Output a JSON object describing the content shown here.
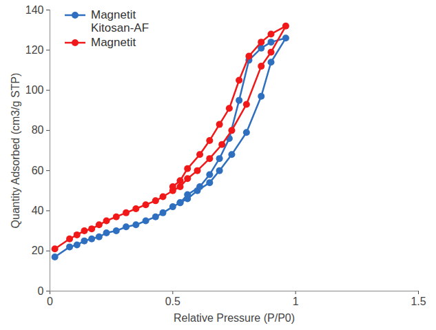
{
  "chart_data": {
    "type": "line",
    "x_label": "Relative Pressure (P/P0)",
    "y_label": "Quantity Adsorbed (cm3/g STP)",
    "xlim": [
      0,
      1.5
    ],
    "xticks": [
      0,
      0.5,
      1,
      1.5
    ],
    "ylim": [
      0,
      140
    ],
    "yticks": [
      0,
      20,
      40,
      60,
      80,
      100,
      120,
      140
    ],
    "grid": false,
    "legend": "upper left",
    "series": [
      {
        "name": "Magnetit Kitosan-AF",
        "color": "#2f6fc0",
        "marker": "circle",
        "line_style": "solid",
        "x": [
          0.02,
          0.08,
          0.11,
          0.14,
          0.17,
          0.2,
          0.23,
          0.27,
          0.31,
          0.35,
          0.39,
          0.43,
          0.46,
          0.5,
          0.53,
          0.56,
          0.6,
          0.65,
          0.69,
          0.74,
          0.8,
          0.86,
          0.9,
          0.96,
          0.9,
          0.86,
          0.81,
          0.77,
          0.73,
          0.69,
          0.65,
          0.61,
          0.56,
          0.53
        ],
        "values": [
          17,
          22,
          23,
          25,
          26,
          27,
          29,
          30,
          32,
          33,
          35,
          37,
          39,
          42,
          44,
          46,
          50,
          54,
          60,
          68,
          79,
          97,
          114,
          126,
          124,
          121,
          115,
          95,
          76,
          66,
          58,
          52,
          48,
          44
        ]
      },
      {
        "name": "Magnetit",
        "color": "#f01818",
        "marker": "circle",
        "line_style": "solid",
        "x": [
          0.02,
          0.08,
          0.11,
          0.14,
          0.17,
          0.2,
          0.23,
          0.27,
          0.31,
          0.35,
          0.39,
          0.43,
          0.46,
          0.5,
          0.53,
          0.56,
          0.6,
          0.65,
          0.7,
          0.74,
          0.8,
          0.86,
          0.9,
          0.96,
          0.9,
          0.86,
          0.81,
          0.77,
          0.73,
          0.69,
          0.65,
          0.61,
          0.56,
          0.53,
          0.5
        ],
        "values": [
          21,
          26,
          28,
          30,
          31,
          33,
          35,
          37,
          39,
          41,
          43,
          45,
          47,
          50,
          52,
          56,
          60,
          66,
          73,
          80,
          93,
          112,
          119,
          132,
          128,
          124,
          117,
          105,
          91,
          83,
          75,
          68,
          61,
          55,
          52
        ]
      }
    ]
  }
}
